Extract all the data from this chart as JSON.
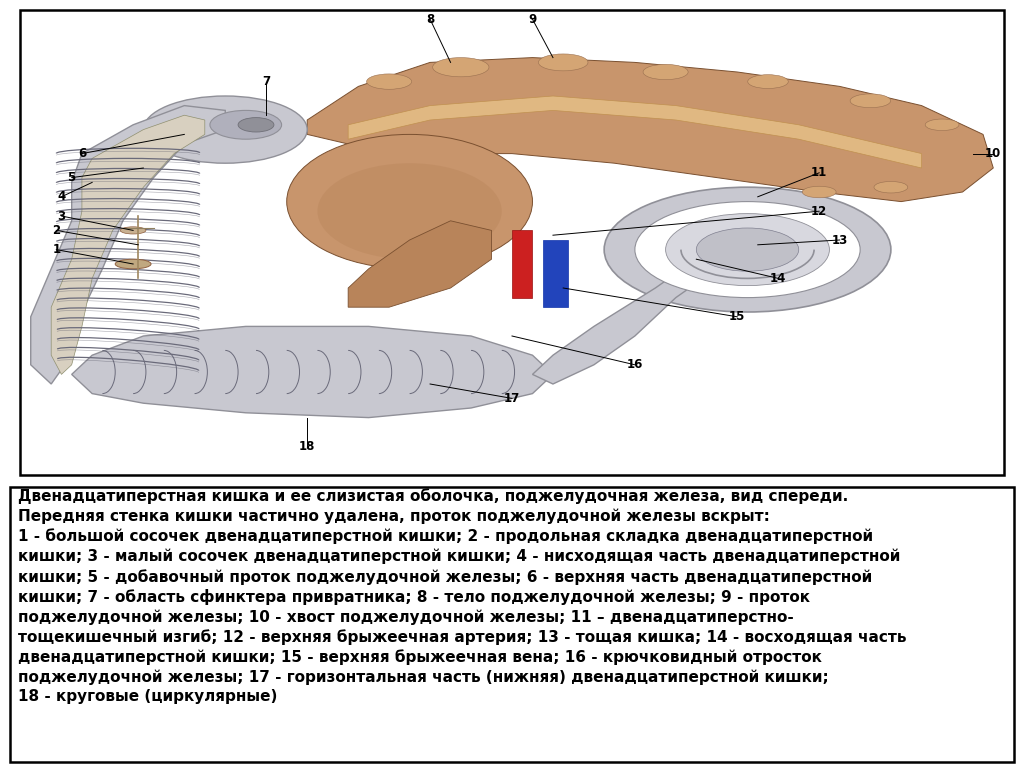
{
  "title_line1": "Двенадцатиперстная кишка и ее слизистая оболочка, поджелудочная железа, вид спереди.",
  "title_line2": "Передняя стенка кишки частично удалена, проток поджелудочной железы вскрыт:",
  "body_text": "1 - большой сосочек двенадцатиперстной кишки; 2 - продольная складка двенадцатиперстной\nкишки; 3 - малый сосочек двенадцатиперстной кишки; 4 - нисходящая часть двенадцатиперстной\nкишки; 5 - добавочный проток поджелудочной железы; 6 - верхняя часть двенадцатиперстной\nкишки; 7 - область сфинктера привратника; 8 - тело поджелудочной железы; 9 - проток\nподжелудочной железы; 10 - хвост поджелудочной железы; 11 – двенадцатиперстно-\nтощекишечный изгиб; 12 - верхняя брыжеечная артерия; 13 - тощая кишка; 14 - восходящая часть\nдвенадцатиперстной кишки; 15 - верхняя брыжеечная вена; 16 - крючковидный отросток\nподжелудочной железы; 17 - горизонтальная часть (нижняя) двенадцатиперстной кишки;\n18 - круговые (циркулярные)",
  "bg_color": "#ffffff",
  "text_color": "#000000",
  "font_size_title": 11.5,
  "font_size_body": 11.0,
  "pancreas_color": "#C8956C",
  "pancreas_light": "#D4A574",
  "pancreas_dark": "#B8845A",
  "duod_color": "#C8C8D0",
  "duod_dark": "#909098",
  "fold_color": "#6A6A7A"
}
